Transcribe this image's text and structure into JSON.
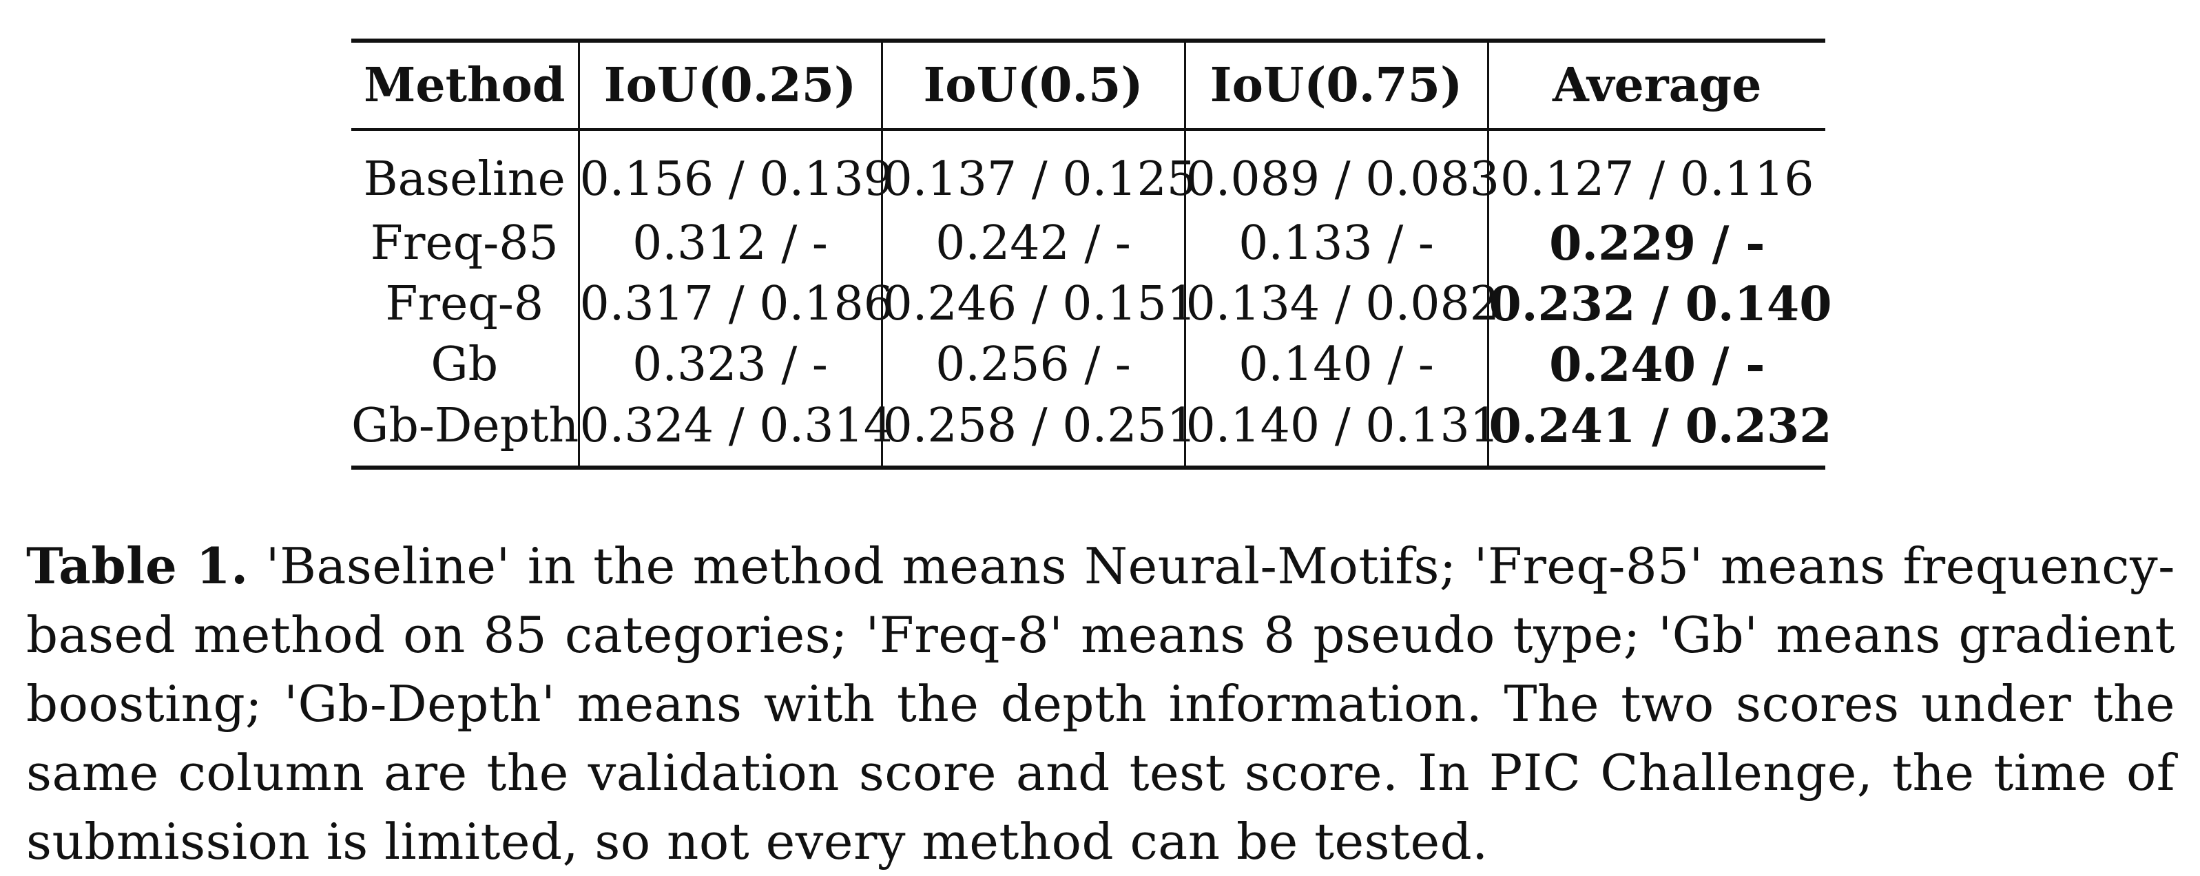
{
  "table": {
    "headers": [
      "Method",
      "IoU(0.25)",
      "IoU(0.5)",
      "IoU(0.75)",
      "Average"
    ],
    "rows": [
      {
        "method": "Baseline",
        "cells": [
          "0.156 / 0.139",
          "0.137 / 0.125",
          "0.089 / 0.083",
          "0.127 / 0.116"
        ],
        "avg_bold": false
      },
      {
        "method": "Freq-85",
        "cells": [
          "0.312 / -",
          "0.242 / -",
          "0.133 / -",
          "0.229 / -"
        ],
        "avg_bold": true
      },
      {
        "method": "Freq-8",
        "cells": [
          "0.317 / 0.186",
          "0.246 / 0.151",
          "0.134 / 0.082",
          "0.232 / 0.140"
        ],
        "avg_bold": true
      },
      {
        "method": "Gb",
        "cells": [
          "0.323 / -",
          "0.256 / -",
          "0.140 / -",
          "0.240 / -"
        ],
        "avg_bold": true
      },
      {
        "method": "Gb-Depth",
        "cells": [
          "0.324 / 0.314",
          "0.258 / 0.251",
          "0.140 / 0.131",
          "0.241 / 0.232"
        ],
        "avg_bold": true
      }
    ]
  },
  "caption": {
    "label": "Table 1.",
    "text": " 'Baseline' in the method means Neural-Motifs; 'Freq-85' means frequency-based method on 85 categories; 'Freq-8' means 8 pseudo type; 'Gb' means gradient boosting; 'Gb-Depth' means with the depth information. The two scores under the same column are the validation score and test score. In PIC Challenge, the time of submission is limited, so not every method can be tested."
  }
}
